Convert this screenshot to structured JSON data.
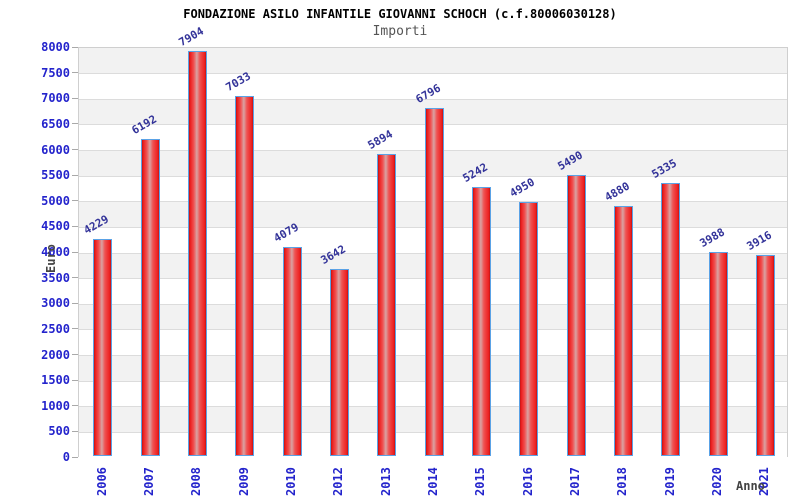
{
  "chart_data": {
    "type": "bar",
    "title": "FONDAZIONE ASILO INFANTILE GIOVANNI SCHOCH (c.f.80006030128)",
    "subtitle": "Importi",
    "xlabel": "Anno",
    "ylabel": "Euro",
    "categories": [
      "2006",
      "2007",
      "2008",
      "2009",
      "2010",
      "2012",
      "2013",
      "2014",
      "2015",
      "2016",
      "2017",
      "2018",
      "2019",
      "2020",
      "2021"
    ],
    "values": [
      4229,
      6192,
      7904,
      7033,
      4079,
      3642,
      5894,
      6796,
      5242,
      4950,
      5490,
      4880,
      5335,
      3988,
      3916
    ],
    "ylim": [
      0,
      8000
    ],
    "ytick_step": 500,
    "grid": "horizontal-on",
    "legend_position": "none",
    "bar_labels_shown": true,
    "colors": {
      "bar_edge": "#c41212",
      "bar_bright": "#ee2222",
      "bar_mid": "#ef5252",
      "bar_highlight": "#d9a2a2",
      "bar_border": "#5aa2e6",
      "tick_label": "#2424cc",
      "value_label": "#333399",
      "axis_title": "#444444",
      "band_gray": "#f2f2f2",
      "band_white": "#ffffff",
      "gridline": "#dcdcdc",
      "title_color": "#000000",
      "subtitle_color": "#555555"
    }
  }
}
